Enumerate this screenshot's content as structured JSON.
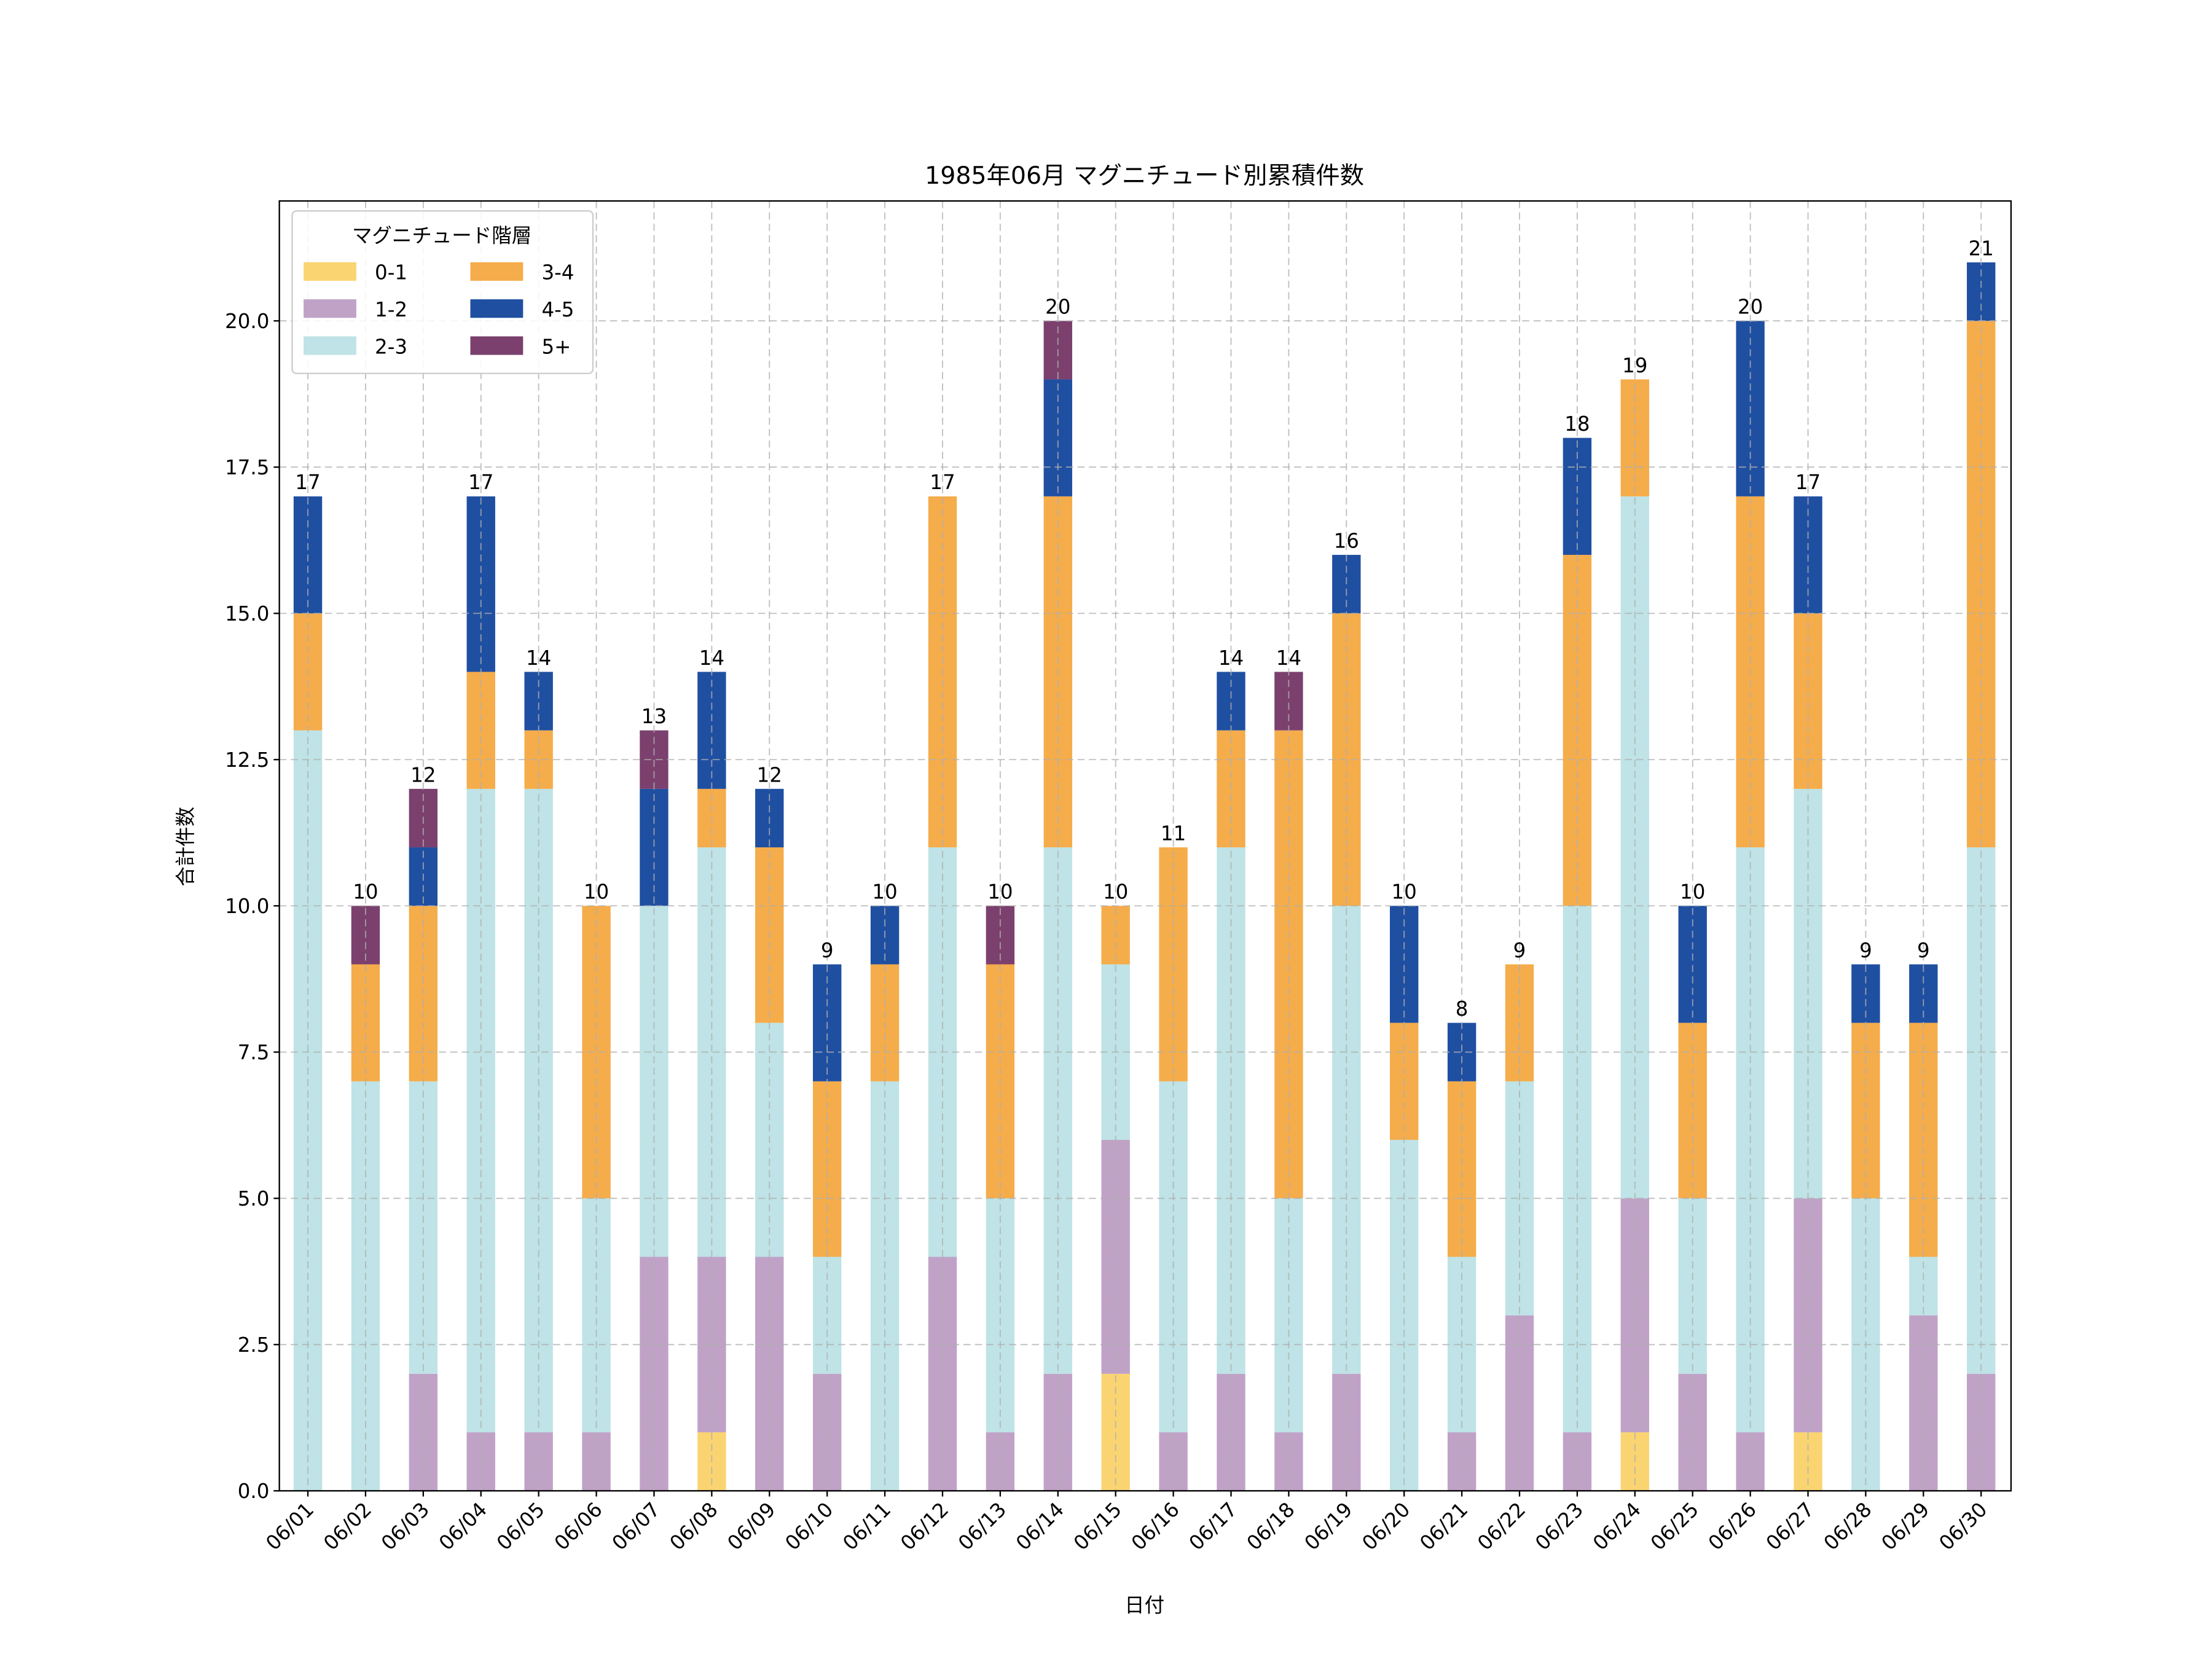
{
  "chart_data": {
    "type": "bar",
    "stacked": true,
    "title": "1985年06月 マグニチュード別累積件数",
    "xlabel": "日付",
    "ylabel": "合計件数",
    "ylim": [
      0,
      22.05
    ],
    "yticks": [
      "0.0",
      "2.5",
      "5.0",
      "7.5",
      "10.0",
      "12.5",
      "15.0",
      "17.5",
      "20.0"
    ],
    "ytick_values": [
      0,
      2.5,
      5,
      7.5,
      10,
      12.5,
      15,
      17.5,
      20
    ],
    "grid": true,
    "legend": {
      "title": "マグニチュード階層",
      "placement": "top-left",
      "columns": 2
    },
    "categories": [
      "06/01",
      "06/02",
      "06/03",
      "06/04",
      "06/05",
      "06/06",
      "06/07",
      "06/08",
      "06/09",
      "06/10",
      "06/11",
      "06/12",
      "06/13",
      "06/14",
      "06/15",
      "06/16",
      "06/17",
      "06/18",
      "06/19",
      "06/20",
      "06/21",
      "06/22",
      "06/23",
      "06/24",
      "06/25",
      "06/26",
      "06/27",
      "06/28",
      "06/29",
      "06/30"
    ],
    "series": [
      {
        "name": "0-1",
        "color": "#FBD472",
        "values": [
          0,
          0,
          0,
          0,
          0,
          0,
          0,
          1,
          0,
          0,
          0,
          0,
          0,
          0,
          2,
          0,
          0,
          0,
          0,
          0,
          0,
          0,
          0,
          1,
          0,
          0,
          1,
          0,
          0,
          0
        ]
      },
      {
        "name": "1-2",
        "color": "#C0A2C7",
        "values": [
          0,
          0,
          2,
          1,
          1,
          1,
          4,
          3,
          4,
          2,
          0,
          4,
          1,
          2,
          4,
          1,
          2,
          1,
          2,
          0,
          1,
          3,
          1,
          4,
          2,
          1,
          4,
          0,
          3,
          2
        ]
      },
      {
        "name": "2-3",
        "color": "#BFE3E6",
        "values": [
          13,
          7,
          5,
          11,
          11,
          4,
          6,
          7,
          4,
          2,
          7,
          7,
          4,
          9,
          3,
          6,
          9,
          4,
          8,
          6,
          3,
          4,
          9,
          12,
          3,
          10,
          7,
          5,
          1,
          9
        ]
      },
      {
        "name": "3-4",
        "color": "#F5AC4A",
        "values": [
          2,
          2,
          3,
          2,
          1,
          5,
          0,
          1,
          3,
          3,
          2,
          6,
          4,
          6,
          1,
          4,
          2,
          8,
          5,
          2,
          3,
          2,
          6,
          2,
          3,
          6,
          3,
          3,
          4,
          9
        ]
      },
      {
        "name": "4-5",
        "color": "#1F4FA1",
        "values": [
          2,
          0,
          1,
          3,
          1,
          0,
          2,
          2,
          1,
          2,
          1,
          0,
          0,
          2,
          0,
          0,
          1,
          0,
          1,
          2,
          1,
          0,
          2,
          0,
          2,
          3,
          2,
          1,
          1,
          1
        ]
      },
      {
        "name": "5+",
        "color": "#7B406E",
        "values": [
          0,
          1,
          1,
          0,
          0,
          0,
          1,
          0,
          0,
          0,
          0,
          0,
          1,
          1,
          0,
          0,
          0,
          1,
          0,
          0,
          0,
          0,
          0,
          0,
          0,
          0,
          0,
          0,
          0,
          0
        ]
      }
    ],
    "totals": [
      17,
      10,
      12,
      17,
      14,
      10,
      13,
      14,
      12,
      9,
      10,
      17,
      10,
      20,
      10,
      11,
      14,
      14,
      16,
      10,
      8,
      9,
      18,
      19,
      10,
      20,
      17,
      9,
      9,
      21
    ]
  }
}
